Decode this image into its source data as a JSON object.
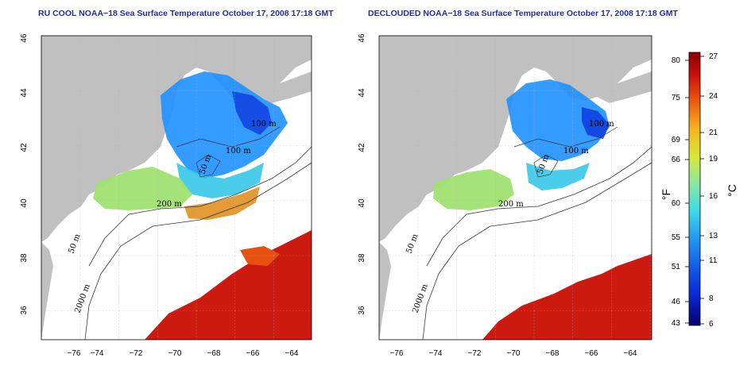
{
  "maps": [
    {
      "id": "left",
      "title": "RU COOL NOAA−18 Sea Surface Temperature October 17, 2008 17:18 GMT",
      "x_ticks": [
        "−76",
        "−74",
        "−72",
        "−70",
        "−68",
        "−66",
        "−64"
      ],
      "y_ticks": [
        "36",
        "38",
        "40",
        "42",
        "44",
        "46"
      ],
      "contour_labels": [
        "100 m",
        "100 m",
        "50 m",
        "200 m",
        "50 m",
        "2000 m"
      ]
    },
    {
      "id": "right",
      "title": "DECLOUDED NOAA−18 Sea Surface Temperature October 17, 2008 17:18 GMT",
      "x_ticks": [
        "−76",
        "−74",
        "−72",
        "−70",
        "−68",
        "−66",
        "−64"
      ],
      "y_ticks": [
        "36",
        "38",
        "40",
        "42",
        "44",
        "46"
      ],
      "contour_labels": [
        "100 m",
        "100 m",
        "50 m",
        "200 m",
        "50 m",
        "2000 m"
      ]
    }
  ],
  "colorbar": {
    "fahrenheit_label": "°F",
    "celsius_label": "°C",
    "fahrenheit_ticks": [
      "80",
      "75",
      "69",
      "66",
      "60",
      "55",
      "51",
      "46",
      "43"
    ],
    "celsius_ticks": [
      "27",
      "24",
      "21",
      "19",
      "16",
      "13",
      "11",
      "8",
      "6"
    ],
    "colors": [
      "#08006e",
      "#0a2bd6",
      "#1f8cf0",
      "#3fd9e8",
      "#8ae8a0",
      "#d8e83a",
      "#f4b421",
      "#ea5b12",
      "#c81010",
      "#8a0000"
    ]
  },
  "colors": {
    "land": "#c0c0c0",
    "title": "#1f2bb0"
  }
}
